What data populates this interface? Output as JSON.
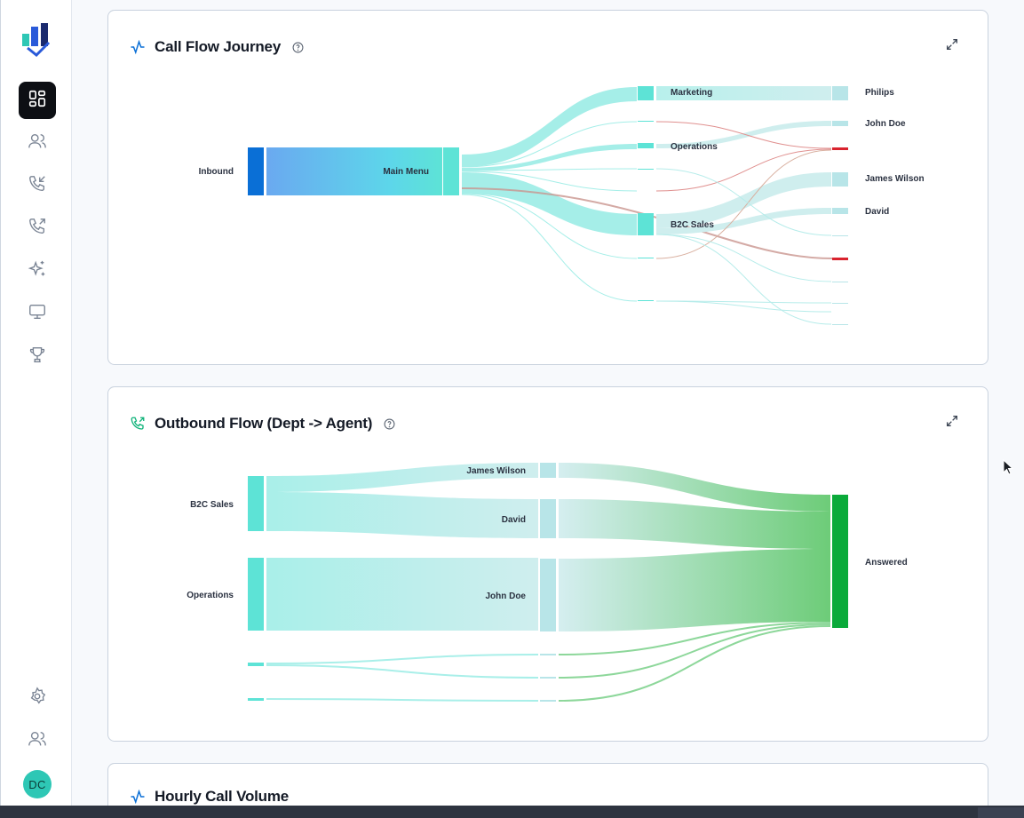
{
  "sidebar": {
    "logo_icon": "bar-chart-logo-icon",
    "items": [
      {
        "name": "dashboard",
        "icon": "grid-icon",
        "active": true
      },
      {
        "name": "users",
        "icon": "users-icon"
      },
      {
        "name": "inbound-calls",
        "icon": "phone-incoming-icon"
      },
      {
        "name": "outbound-calls",
        "icon": "phone-outgoing-icon"
      },
      {
        "name": "ai-insights",
        "icon": "sparkles-icon"
      },
      {
        "name": "monitor",
        "icon": "monitor-icon"
      },
      {
        "name": "leaderboard",
        "icon": "trophy-icon"
      },
      {
        "name": "settings",
        "icon": "gear-icon"
      },
      {
        "name": "team",
        "icon": "users-icon"
      }
    ],
    "avatar_initials": "DC",
    "avatar_color": "#2ec7b5"
  },
  "cards": {
    "call_flow": {
      "title": "Call Flow Journey"
    },
    "outbound_flow": {
      "title": "Outbound Flow (Dept -> Agent)"
    },
    "hourly_volume": {
      "title": "Hourly Call Volume"
    }
  },
  "colors": {
    "accent_blue": "#0a6fd6",
    "accent_green": "#10b37a",
    "teal_node": "#5de3d6",
    "red_flow": "#d9232e",
    "answered_green": "#0aaa3a"
  },
  "chart_data": [
    {
      "type": "sankey",
      "nodes": [
        {
          "id": "inbound",
          "label": "Inbound"
        },
        {
          "id": "main_menu",
          "label": "Main Menu"
        },
        {
          "id": "marketing",
          "label": "Marketing"
        },
        {
          "id": "operations",
          "label": "Operations"
        },
        {
          "id": "b2c_sales",
          "label": "B2C Sales"
        },
        {
          "id": "philips",
          "label": "Philips"
        },
        {
          "id": "john_doe",
          "label": "John Doe"
        },
        {
          "id": "james_wilson",
          "label": "James Wilson"
        },
        {
          "id": "david",
          "label": "David"
        }
      ]
    },
    {
      "type": "sankey",
      "nodes": [
        {
          "id": "b2c_sales",
          "label": "B2C Sales"
        },
        {
          "id": "operations",
          "label": "Operations"
        },
        {
          "id": "james_wilson",
          "label": "James Wilson"
        },
        {
          "id": "david",
          "label": "David"
        },
        {
          "id": "john_doe",
          "label": "John Doe"
        },
        {
          "id": "answered",
          "label": "Answered"
        }
      ]
    }
  ]
}
